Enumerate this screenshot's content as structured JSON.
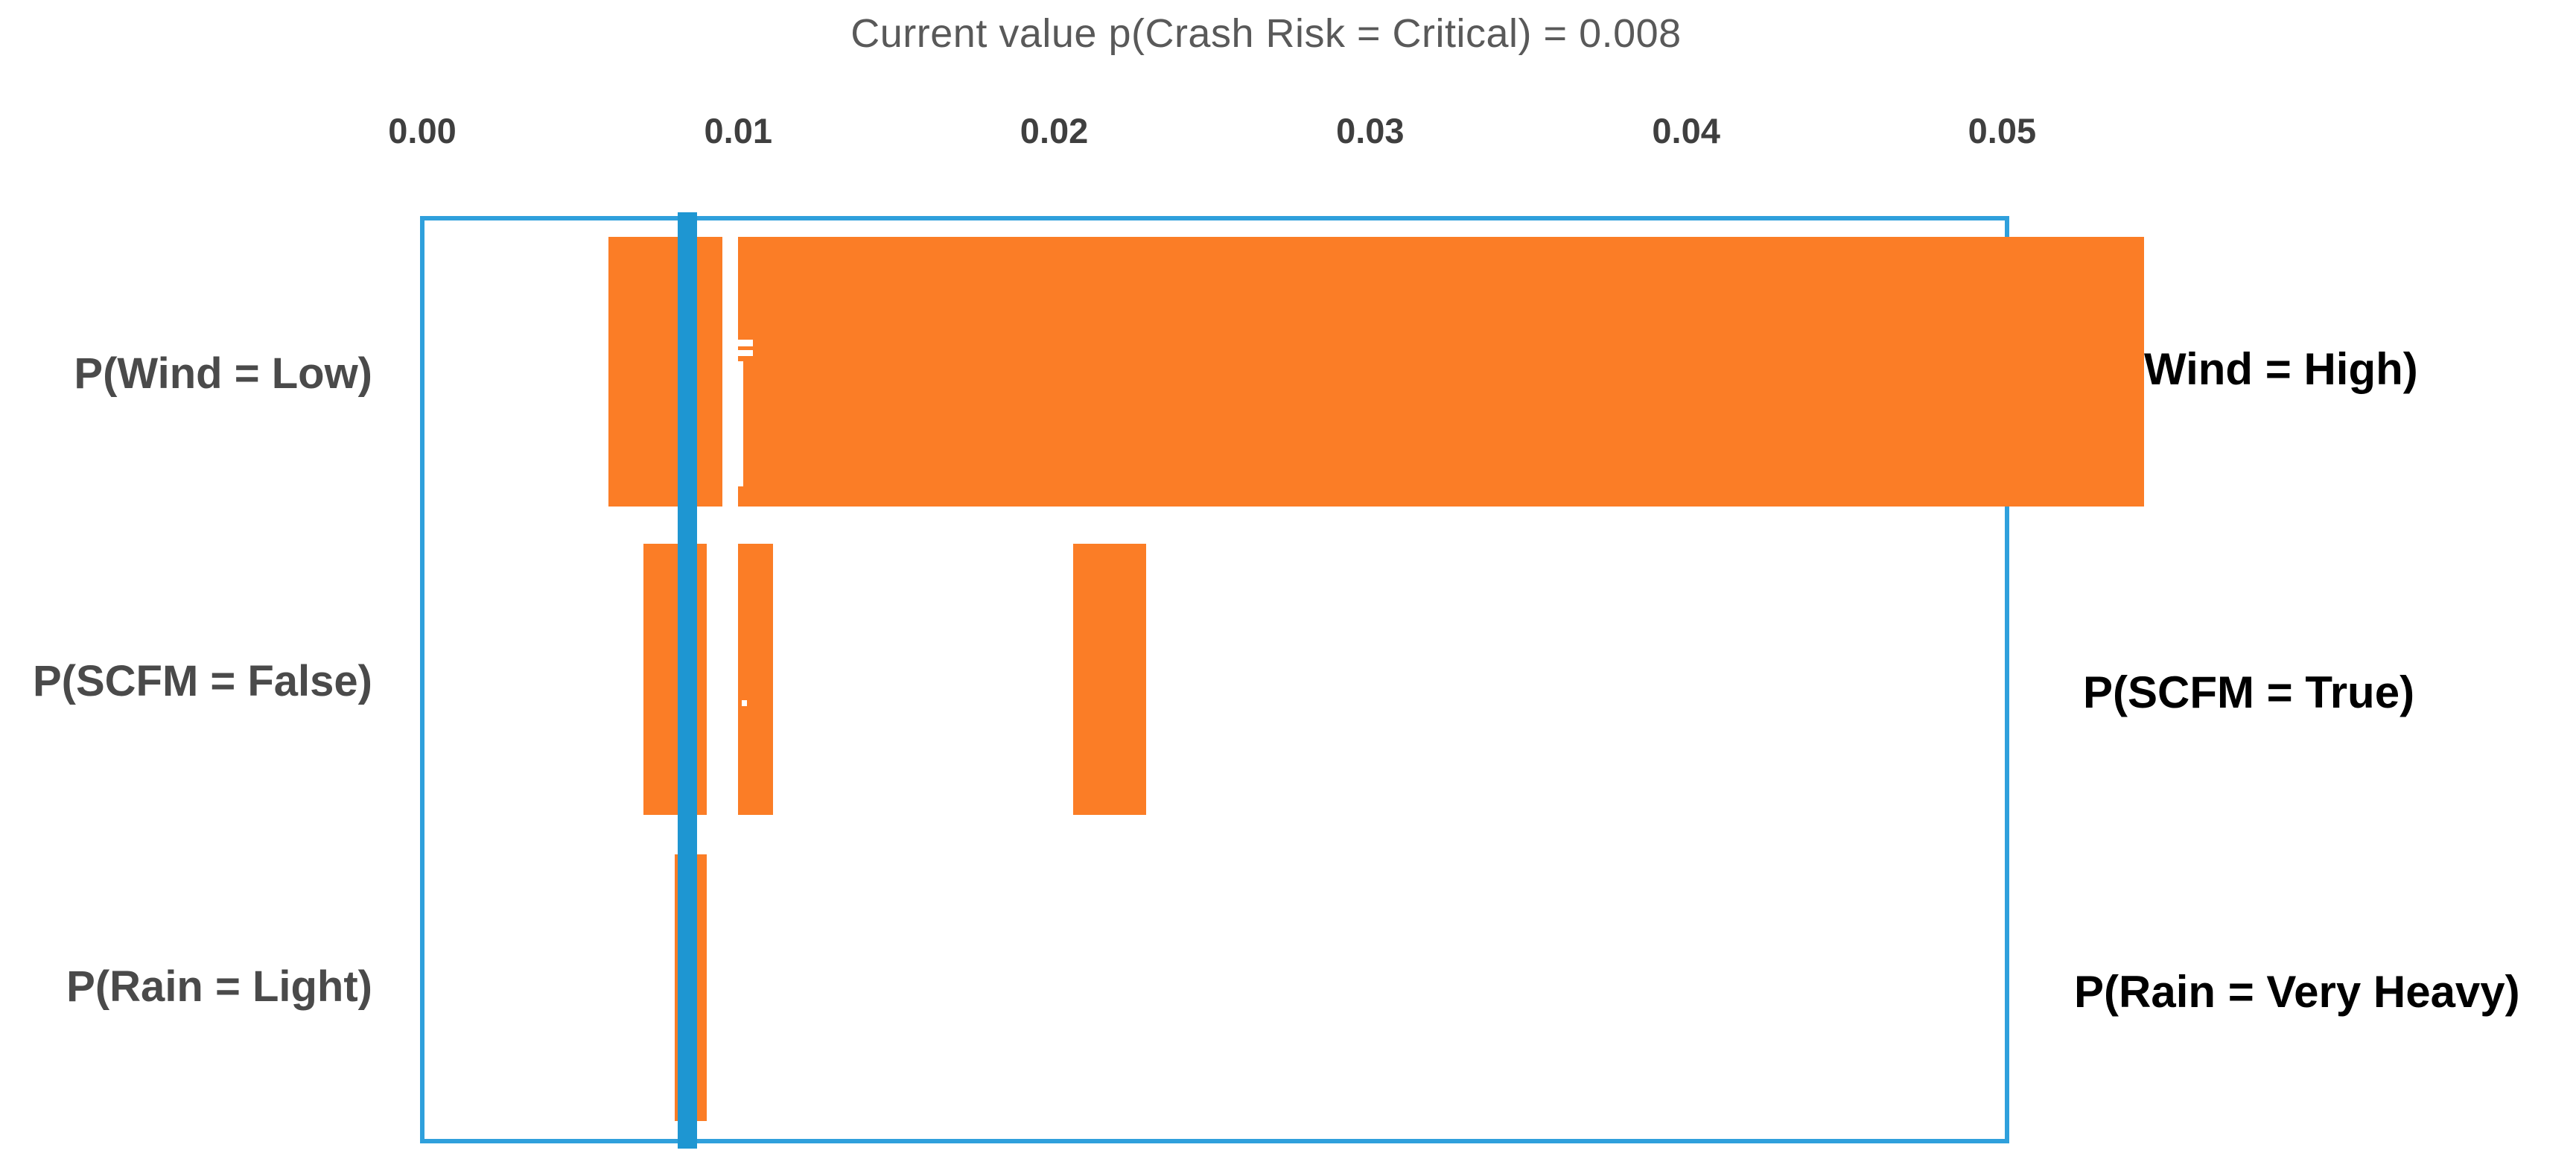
{
  "chart_data": {
    "type": "bar",
    "variant": "tornado-sensitivity-horizontal",
    "title": "Current value p(Crash Risk = Critical) = 0.008",
    "current_value": 0.008,
    "current_line_value": 0.0084,
    "xlabel": "",
    "ylabel": "",
    "x_axis": {
      "min": 0.0,
      "max": 0.05,
      "ticks": [
        {
          "label": "0.00",
          "value": 0.0
        },
        {
          "label": "0.01",
          "value": 0.01
        },
        {
          "label": "0.02",
          "value": 0.02
        },
        {
          "label": "0.03",
          "value": 0.03
        },
        {
          "label": "0.04",
          "value": 0.04
        },
        {
          "label": "0.05",
          "value": 0.05
        }
      ],
      "position": "top"
    },
    "grid": false,
    "legend": "none",
    "bar_color": "#fb7d26",
    "current_line_color": "#1e96d2",
    "plot_border_color": "#2fa0dc",
    "rows": [
      {
        "left_label": "P(Wind = Low)",
        "right_label": "Wind = High)",
        "segments": [
          {
            "from": 0.0059,
            "to": 0.0095
          },
          {
            "from": 0.01,
            "to": 0.0545
          }
        ]
      },
      {
        "left_label": "P(SCFM = False)",
        "right_label": "P(SCFM = True)",
        "segments": [
          {
            "from": 0.007,
            "to": 0.009
          },
          {
            "from": 0.01,
            "to": 0.0111
          },
          {
            "from": 0.0206,
            "to": 0.0229
          }
        ]
      },
      {
        "left_label": "P(Rain = Light)",
        "right_label": "P(Rain = Very Heavy)",
        "segments": [
          {
            "from": 0.008,
            "to": 0.009
          }
        ]
      }
    ]
  }
}
